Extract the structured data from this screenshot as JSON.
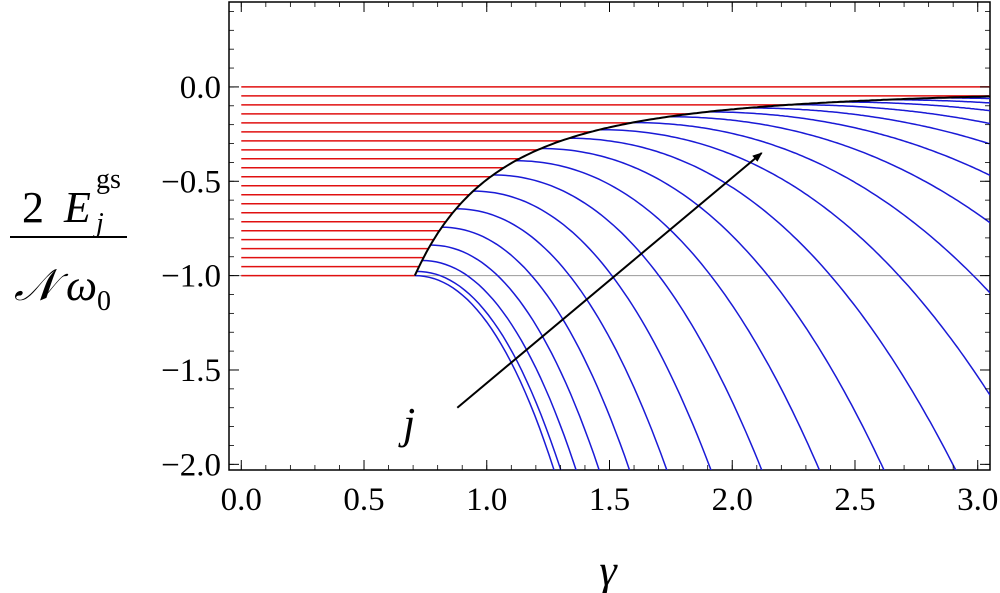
{
  "chart_data": {
    "type": "line",
    "xlabel": "γ",
    "ylabel": {
      "numerator_coeff": "2",
      "numerator_symbol": "E",
      "superscript": "gs",
      "subscript": "j",
      "denominator_symbol": "𝒩",
      "denominator_omega": "ω",
      "denominator_sub": "0"
    },
    "xlim": [
      -0.05,
      3.05
    ],
    "ylim": [
      -2.03,
      0.45
    ],
    "x_ticks": [
      {
        "value": 0.0,
        "label": "0.0"
      },
      {
        "value": 0.5,
        "label": "0.5"
      },
      {
        "value": 1.0,
        "label": "1.0"
      },
      {
        "value": 1.5,
        "label": "1.5"
      },
      {
        "value": 2.0,
        "label": "2.0"
      },
      {
        "value": 2.5,
        "label": "2.5"
      },
      {
        "value": 3.0,
        "label": "3.0"
      }
    ],
    "y_ticks": [
      {
        "value": 0.0,
        "label": "0.0"
      },
      {
        "value": -0.5,
        "label": "−0.5"
      },
      {
        "value": -1.0,
        "label": "−1.0"
      },
      {
        "value": -1.5,
        "label": "−1.5"
      },
      {
        "value": -2.0,
        "label": "−2.0"
      }
    ],
    "reference_line_y": -1.0,
    "family_count": 21,
    "gamma_critical": 0.707,
    "red_series": {
      "color": "#e01010",
      "x_range": [
        0.0,
        0.707
      ],
      "y_range": [
        -1.0,
        0.0
      ]
    },
    "blue_series": {
      "color": "#1a1ad6",
      "x_range": [
        0.707,
        3.05
      ]
    },
    "envelope": {
      "color": "#000000",
      "start": [
        0.707,
        -1.0
      ],
      "end": [
        3.05,
        -0.05
      ]
    },
    "annotation": {
      "label": "j",
      "arrow_from": [
        0.88,
        -1.7
      ],
      "arrow_to": [
        2.12,
        -0.35
      ]
    }
  }
}
